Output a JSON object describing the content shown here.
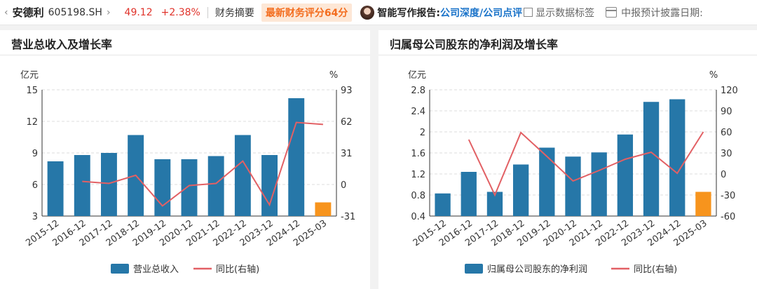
{
  "header": {
    "stock_name": "安德利",
    "stock_code": "605198.SH",
    "price": "49.12",
    "change": "+2.38%",
    "summary_tab": "财务摘要",
    "score_badge": "最新财务评分64分",
    "ai_report_label": "智能写作报告:",
    "link_depth": "公司深度/",
    "link_review": "公司点评",
    "show_labels": "显示数据标签",
    "forecast_label": "中报预计披露日期:"
  },
  "panels": {
    "revenue": {
      "title": "营业总收入及增长率"
    },
    "profit": {
      "title": "归属母公司股东的净利润及增长率"
    }
  },
  "colors": {
    "bar": "#2677a8",
    "bar_highlight": "#f7941d",
    "line": "#e26064",
    "up": "#e0322a",
    "accent": "#f36d1f",
    "link": "#1a73c9"
  },
  "chart_data": [
    {
      "type": "bar",
      "title": "营业总收入及增长率",
      "categories": [
        "2015-12",
        "2016-12",
        "2017-12",
        "2018-12",
        "2019-12",
        "2020-12",
        "2021-12",
        "2022-12",
        "2023-12",
        "2024-12",
        "2025-03"
      ],
      "series": [
        {
          "name": "营业总收入",
          "type": "bar",
          "axis": "left",
          "values": [
            8.2,
            8.8,
            9.0,
            10.7,
            8.4,
            8.4,
            8.7,
            10.7,
            8.8,
            14.2,
            4.3
          ]
        },
        {
          "name": "同比(右轴)",
          "type": "line",
          "axis": "right",
          "values": [
            null,
            3,
            1,
            9,
            -21,
            -1,
            1,
            23,
            -20,
            61,
            59
          ]
        }
      ],
      "highlight_last": true,
      "ylabel_left": "亿元",
      "ylabel_right": "%",
      "yticks_left": [
        "15",
        "12",
        "9",
        "6",
        "3"
      ],
      "yticks_right": [
        "93",
        "62",
        "31",
        "0",
        "-31"
      ],
      "ylim_left": [
        3,
        15
      ],
      "ylim_right": [
        -31,
        93
      ],
      "legend": [
        "营业总收入",
        "同比(右轴)"
      ],
      "legend_position": "bottom",
      "grid": true
    },
    {
      "type": "bar",
      "title": "归属母公司股东的净利润及增长率",
      "categories": [
        "2015-12",
        "2016-12",
        "2017-12",
        "2018-12",
        "2019-12",
        "2020-12",
        "2021-12",
        "2022-12",
        "2023-12",
        "2024-12",
        "2025-03"
      ],
      "series": [
        {
          "name": "归属母公司股东的净利润",
          "type": "bar",
          "axis": "left",
          "values": [
            0.83,
            1.24,
            0.86,
            1.38,
            1.7,
            1.53,
            1.61,
            1.95,
            2.57,
            2.62,
            0.86
          ]
        },
        {
          "name": "同比(右轴)",
          "type": "line",
          "axis": "right",
          "values": [
            null,
            49,
            -30,
            59,
            25,
            -10,
            5,
            21,
            31,
            1,
            60
          ]
        }
      ],
      "highlight_last": true,
      "ylabel_left": "亿元",
      "ylabel_right": "%",
      "yticks_left": [
        "2.8",
        "2.4",
        "2",
        "1.6",
        "1.2",
        "0.8",
        "0.4"
      ],
      "yticks_right": [
        "120",
        "90",
        "60",
        "30",
        "0",
        "-30",
        "-60"
      ],
      "ylim_left": [
        0.4,
        2.8
      ],
      "ylim_right": [
        -60,
        120
      ],
      "legend": [
        "归属母公司股东的净利润",
        "同比(右轴)"
      ],
      "legend_position": "bottom",
      "grid": true
    }
  ]
}
